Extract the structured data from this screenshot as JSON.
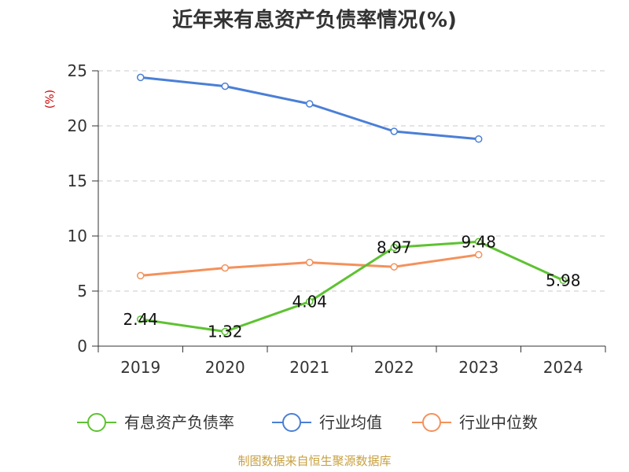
{
  "chart_data": {
    "type": "line",
    "title": "近年来有息资产负债率情况(%)",
    "ylabel": "(%)",
    "xlabel": "",
    "categories": [
      "2019",
      "2020",
      "2021",
      "2022",
      "2023",
      "2024"
    ],
    "ylim": [
      0,
      25
    ],
    "yticks": [
      0,
      5,
      10,
      15,
      20,
      25
    ],
    "grid": true,
    "legend_position": "bottom",
    "series": [
      {
        "name": "有息资产负债率",
        "color": "#5ec232",
        "values": [
          2.44,
          1.32,
          4.04,
          8.97,
          9.48,
          5.98
        ],
        "labels": [
          "2.44",
          "1.32",
          "4.04",
          "8.97",
          "9.48",
          "5.98"
        ]
      },
      {
        "name": "行业均值",
        "color": "#4a7fd6",
        "values": [
          24.4,
          23.6,
          22.0,
          19.5,
          18.8,
          null
        ]
      },
      {
        "name": "行业中位数",
        "color": "#f4915b",
        "values": [
          6.4,
          7.1,
          7.6,
          7.2,
          8.3,
          null
        ]
      }
    ]
  },
  "source_text": "制图数据来自恒生聚源数据库"
}
